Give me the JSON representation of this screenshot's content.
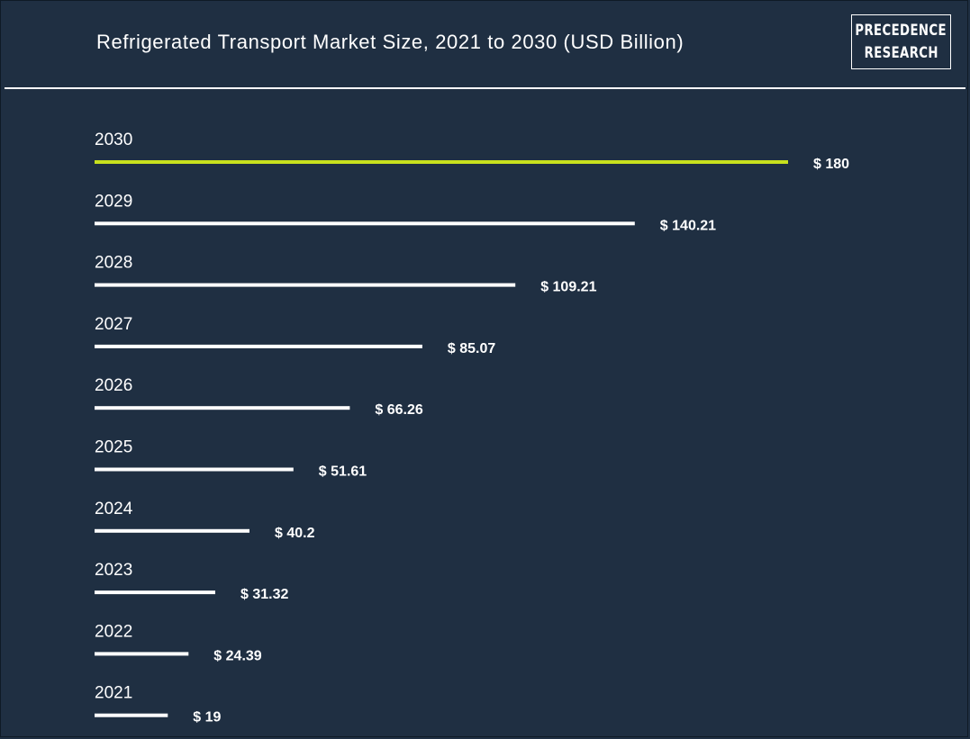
{
  "header": {
    "title": "Refrigerated Transport Market Size, 2021 to 2030 (USD Billion)",
    "logo_line1": "PRECEDENCE",
    "logo_line2": "RESEARCH"
  },
  "colors": {
    "background": "#1f2f42",
    "bar_default": "#ffffff",
    "bar_highlight": "#c8e11e",
    "text": "#ffffff"
  },
  "chart_data": {
    "type": "bar",
    "orientation": "horizontal",
    "title": "Refrigerated Transport Market Size, 2021 to 2030 (USD Billion)",
    "categories": [
      "2030",
      "2029",
      "2028",
      "2027",
      "2026",
      "2025",
      "2024",
      "2023",
      "2022",
      "2021"
    ],
    "values": [
      180,
      140.21,
      109.21,
      85.07,
      66.26,
      51.61,
      40.2,
      31.32,
      24.39,
      19
    ],
    "value_labels": [
      "$ 180",
      "$ 140.21",
      "$ 109.21",
      "$ 85.07",
      "$ 66.26",
      "$ 51.61",
      "$ 40.2",
      "$ 31.32",
      "$ 24.39",
      "$ 19"
    ],
    "highlight_category": "2030",
    "grid": false,
    "legend": "none"
  }
}
